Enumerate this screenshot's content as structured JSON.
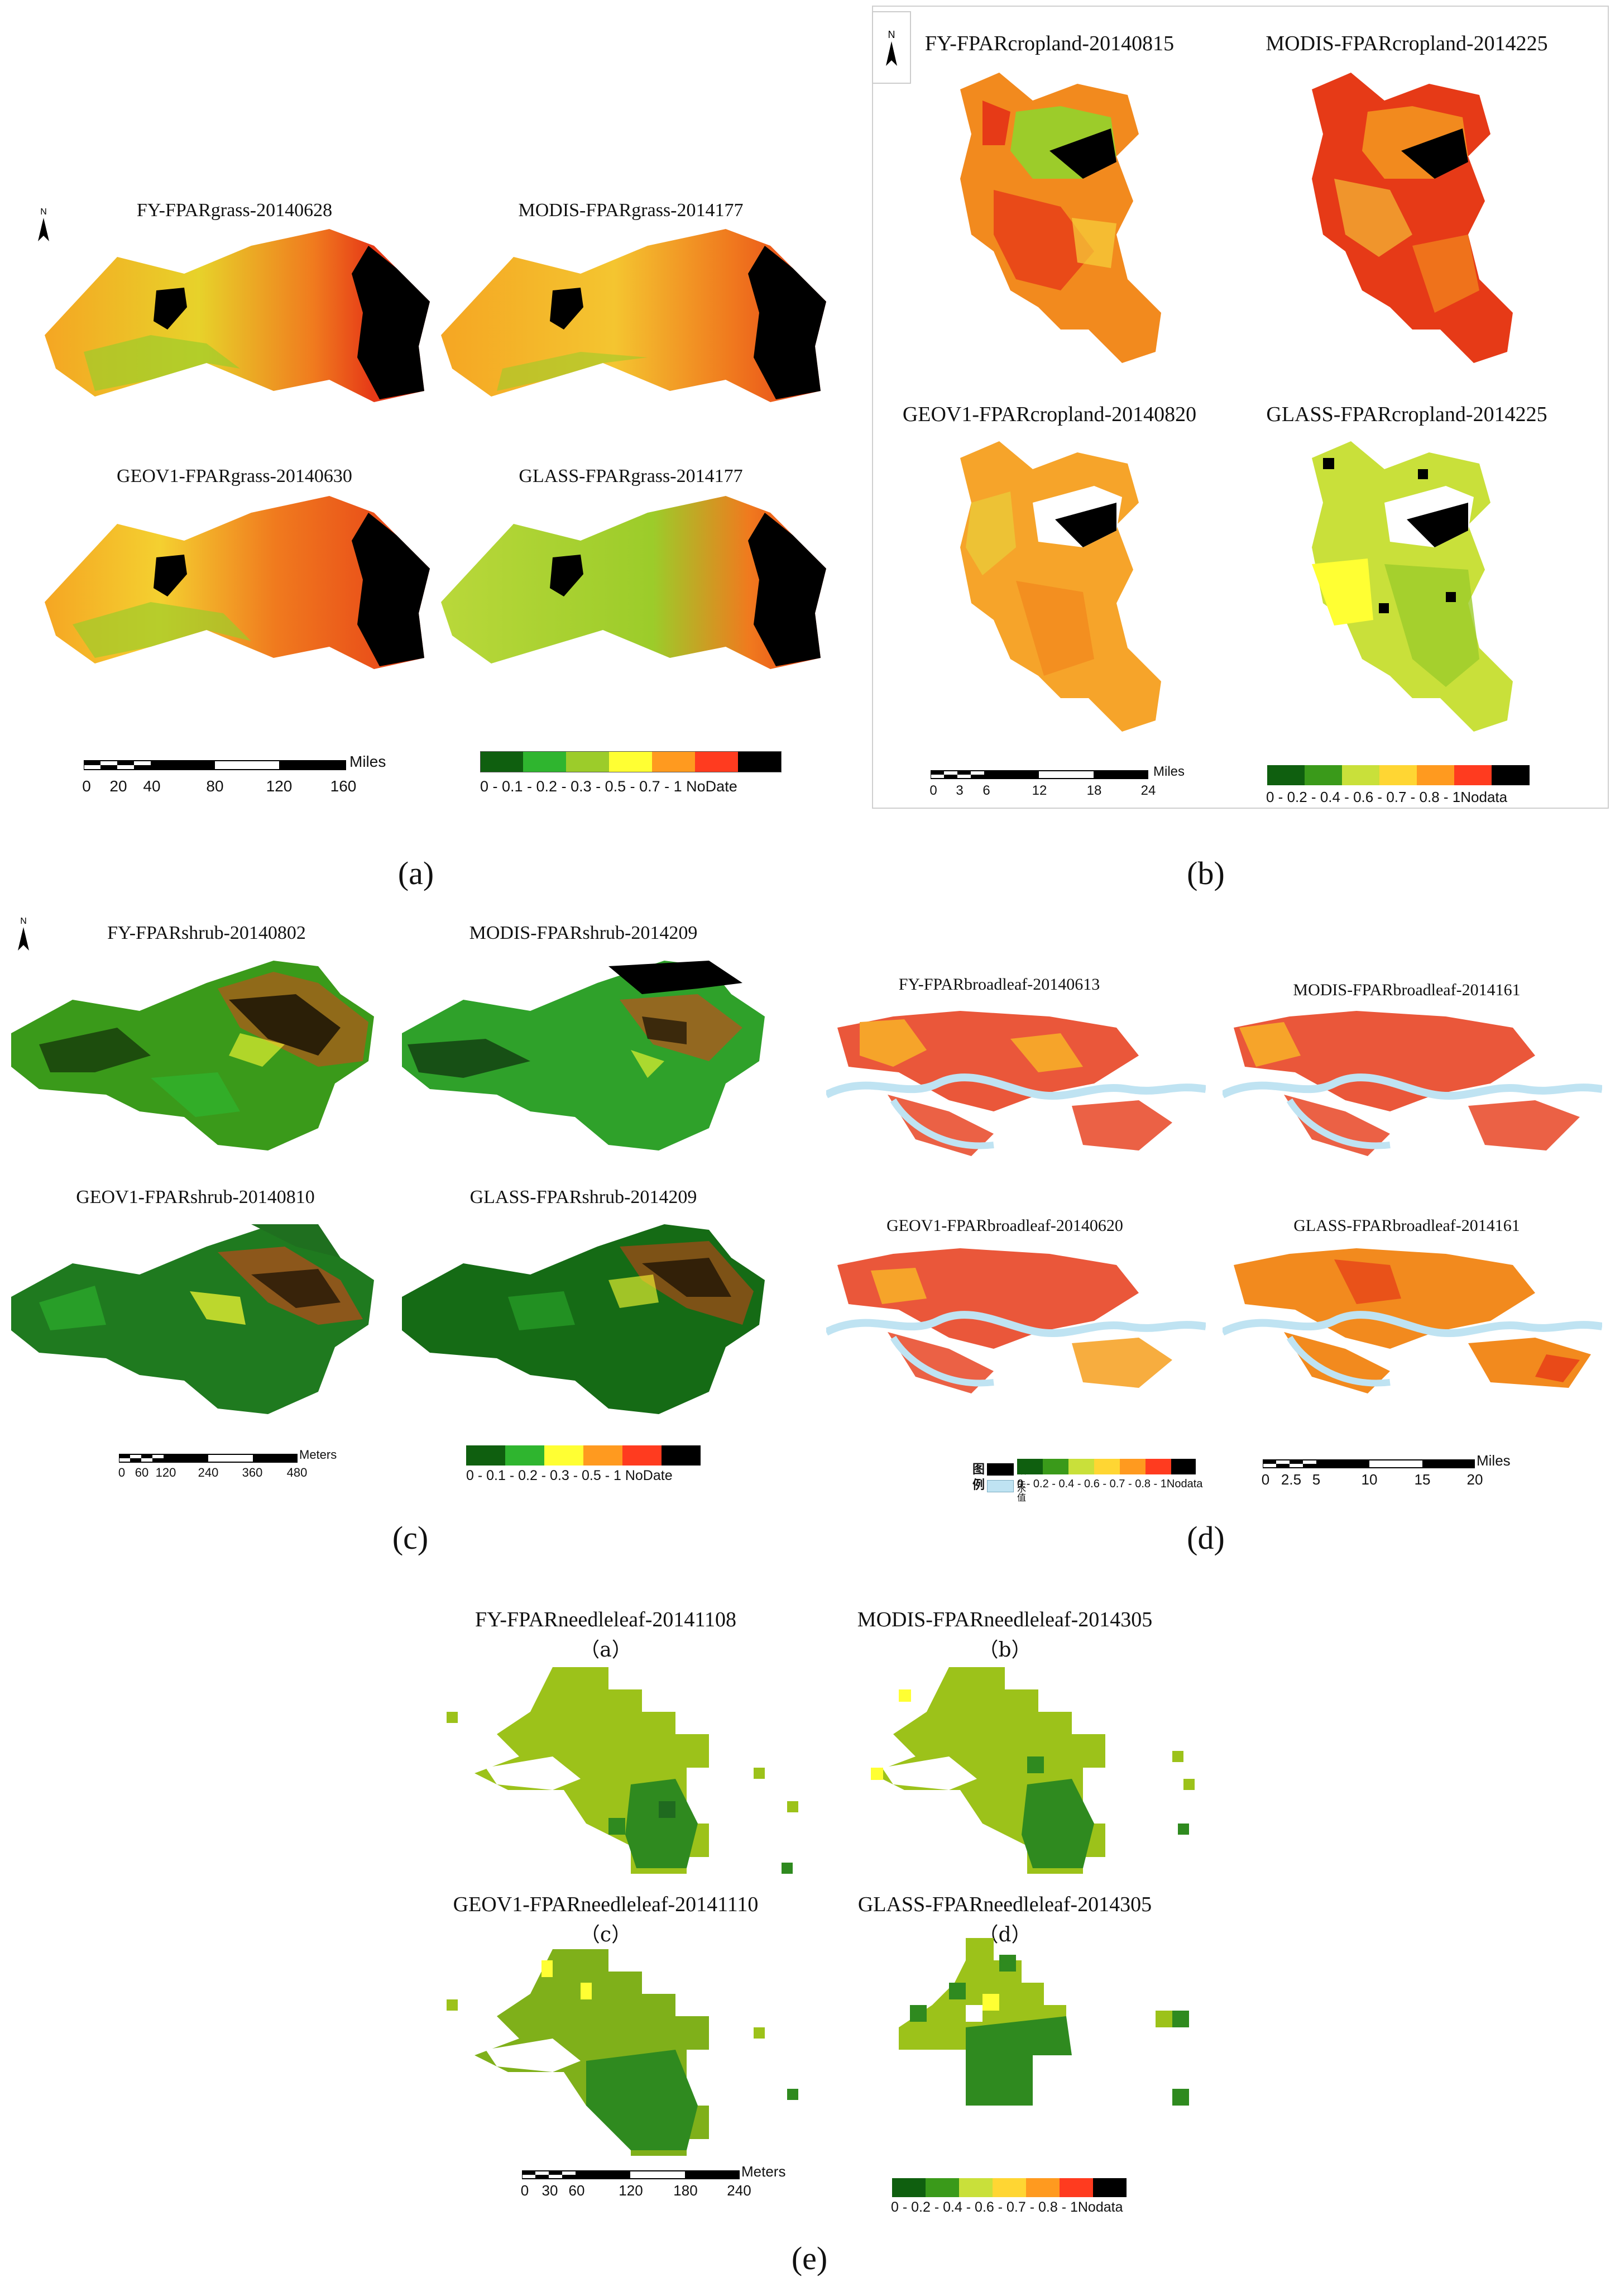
{
  "panels": {
    "a": {
      "caption": "(a)",
      "north": "N",
      "maps": [
        "FY-FPARgrass-20140628",
        "MODIS-FPARgrass-2014177",
        "GEOV1-FPARgrass-20140630",
        "GLASS-FPARgrass-2014177"
      ],
      "scale": {
        "unit": "Miles",
        "ticks": [
          "0",
          "20",
          "40",
          "80",
          "120",
          "160"
        ]
      },
      "legend": "0 - 0.1 - 0.2 - 0.3 - 0.5 - 0.7 - 1 NoDate"
    },
    "b": {
      "caption": "(b)",
      "maps": [
        "FY-FPARcropland-20140815",
        "MODIS-FPARcropland-2014225",
        "GEOV1-FPARcropland-20140820",
        "GLASS-FPARcropland-2014225"
      ],
      "scale": {
        "unit": "Miles",
        "ticks": [
          "0",
          "3",
          "6",
          "12",
          "18",
          "24"
        ]
      },
      "legend": "0 - 0.2 - 0.4 - 0.6 - 0.7 - 0.8 - 1Nodata"
    },
    "c": {
      "caption": "(c)",
      "maps": [
        "FY-FPARshrub-20140802",
        "MODIS-FPARshrub-2014209",
        "GEOV1-FPARshrub-20140810",
        "GLASS-FPARshrub-2014209"
      ],
      "scale": {
        "unit": "Meters",
        "ticks": [
          "0",
          "60",
          "120",
          "240",
          "360",
          "480"
        ]
      },
      "legend": "0 - 0.1 - 0.2 - 0.3 - 0.5 - 1 NoDate"
    },
    "d": {
      "caption": "(d)",
      "maps": [
        "FY-FPARbroadleaf-20140613",
        "MODIS-FPARbroadleaf-2014161",
        "GEOV1-FPARbroadleaf-20140620",
        "GLASS-FPARbroadleaf-2014161"
      ],
      "scale": {
        "unit": "Miles",
        "ticks": [
          "0",
          "2.5",
          "5",
          "10",
          "15",
          "20"
        ]
      },
      "legend": "0 - 0.2 - 0.4 - 0.6 - 0.7 - 0.8 - 1Nodata",
      "cn_legend": {
        "title": "图例",
        "item1": "缺失值",
        "item2": "水"
      }
    },
    "e": {
      "caption": "(e)",
      "maps": [
        "FY-FPARneedleleaf-20141108",
        "MODIS-FPARneedleleaf-2014305",
        "GEOV1-FPARneedleleaf-20141110",
        "GLASS-FPARneedleleaf-2014305"
      ],
      "subletters": [
        "（a）",
        "（b）",
        "（c）",
        "（d）"
      ],
      "scale": {
        "unit": "Meters",
        "ticks": [
          "0",
          "30",
          "60",
          "120",
          "180",
          "240"
        ]
      },
      "legend": "0 - 0.2 - 0.4 - 0.6 - 0.7 - 0.8 - 1Nodata"
    }
  },
  "colors": {
    "nodata": "#000000",
    "water": "#bfe3f2",
    "legend_scale": [
      "#0f5f0f",
      "#2fb52f",
      "#9ccc2a",
      "#ffff33",
      "#ff9a1f",
      "#ff3b1f",
      "#000000"
    ]
  }
}
